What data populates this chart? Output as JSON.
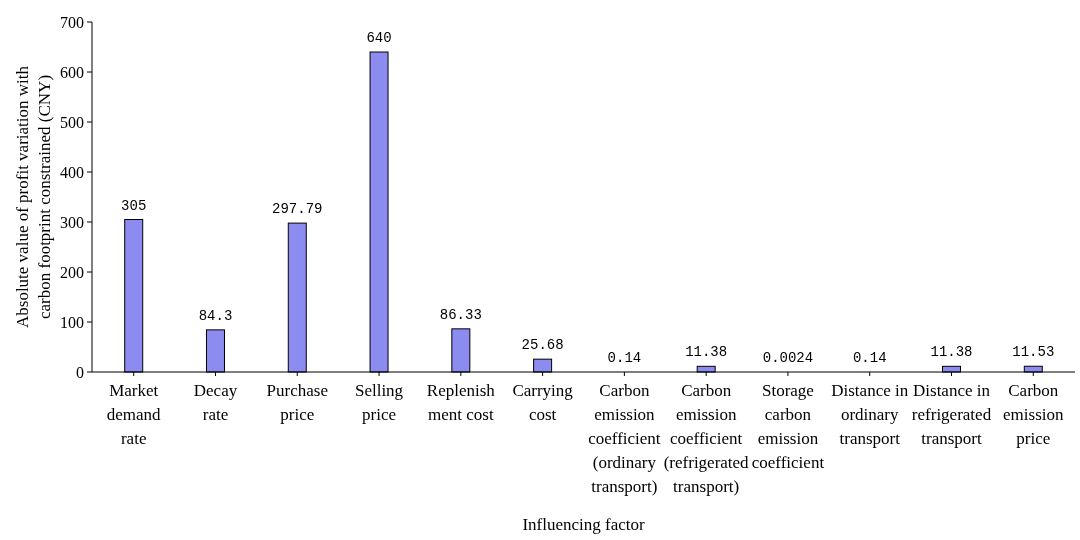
{
  "chart_data": {
    "type": "bar",
    "xlabel": "Influencing factor",
    "ylabel": "Absolute value of profit variation with carbon footprint constrained (CNY)",
    "categories": [
      "Market\ndemand\nrate",
      "Decay\nrate",
      "Purchase\nprice",
      "Selling\nprice",
      "Replenish\nment cost",
      "Carrying\ncost",
      "Carbon\nemission\ncoefficient\n(ordinary\ntransport)",
      "Carbon\nemission\ncoefficient\n(refrigerated\ntransport)",
      "Storage\ncarbon\nemission\ncoefficient",
      "Distance in\nordinary\ntransport",
      "Distance in\nrefrigerated\ntransport",
      "Carbon\nemission\nprice"
    ],
    "values": [
      305,
      84.3,
      297.79,
      640,
      86.33,
      25.68,
      0.14,
      11.38,
      0.0024,
      0.14,
      11.38,
      11.53
    ],
    "color": "#8c8cf0",
    "ylim": [
      0,
      700
    ],
    "yticks": [
      0,
      100,
      200,
      300,
      400,
      500,
      600,
      700
    ],
    "data_labels": true,
    "grid": false
  }
}
